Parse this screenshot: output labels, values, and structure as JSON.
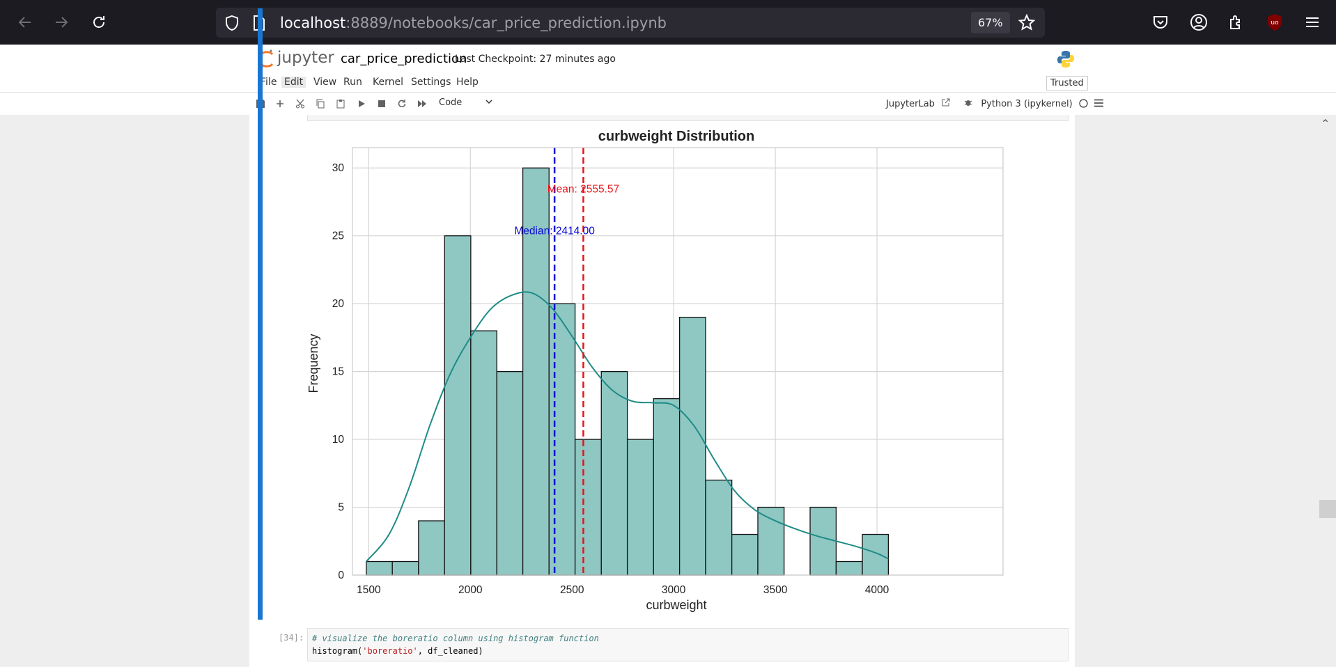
{
  "browser": {
    "url_host": "localhost",
    "url_path": ":8889/notebooks/car_price_prediction.ipynb",
    "zoom": "67%",
    "icons": [
      "back-arrow-icon",
      "forward-arrow-icon",
      "reload-icon",
      "shield-icon",
      "page-icon",
      "star-icon",
      "pocket-icon",
      "account-icon",
      "extensions-icon",
      "ublock-icon",
      "menu-icon"
    ]
  },
  "jupyter": {
    "brand": "jupyter",
    "notebook_name": "car_price_prediction",
    "checkpoint": "Last Checkpoint: 27 minutes ago",
    "menu": [
      "File",
      "Edit",
      "View",
      "Run",
      "Kernel",
      "Settings",
      "Help"
    ],
    "trusted": "Trusted",
    "cell_type": "Code",
    "jupyterlab": "JupyterLab",
    "kernel": "Python 3 (ipykernel)"
  },
  "colors": {
    "bar_fill": "#8fc7c3",
    "kde": "#1e8c86",
    "mean": "#e8141a",
    "median": "#0b0bd6",
    "active_cell": "#1976d2"
  },
  "chart_data": {
    "type": "bar",
    "title": "curbweight Distribution",
    "xlabel": "curbweight",
    "ylabel": "Frequency",
    "xlim": [
      1420,
      4620
    ],
    "ylim": [
      0,
      31.5
    ],
    "xticks": [
      1500,
      2000,
      2500,
      3000,
      3500,
      4000
    ],
    "yticks": [
      0,
      5,
      10,
      15,
      20,
      25,
      30
    ],
    "bin_edges": [
      1488,
      1616,
      1745,
      1873,
      2002,
      2130,
      2258,
      2387,
      2515,
      2644,
      2772,
      2901,
      3029,
      3157,
      3286,
      3414,
      3543,
      3671,
      3799,
      3928,
      4056
    ],
    "values": [
      1,
      1,
      4,
      25,
      18,
      15,
      30,
      20,
      10,
      15,
      10,
      13,
      19,
      7,
      3,
      5,
      0,
      5,
      1,
      3
    ],
    "kde": {
      "x": [
        1488,
        1600,
        1700,
        1800,
        1900,
        2000,
        2100,
        2200,
        2300,
        2400,
        2500,
        2600,
        2700,
        2800,
        2900,
        3000,
        3100,
        3200,
        3300,
        3400,
        3500,
        3600,
        3700,
        3800,
        3900,
        4000,
        4056
      ],
      "y": [
        1.0,
        3.0,
        6.5,
        11.0,
        14.8,
        17.5,
        19.6,
        20.6,
        20.8,
        19.7,
        17.6,
        15.3,
        13.6,
        12.8,
        12.7,
        12.5,
        11.0,
        8.5,
        6.2,
        4.8,
        4.0,
        3.4,
        2.9,
        2.5,
        2.1,
        1.6,
        1.2
      ]
    },
    "mean": 2555.57,
    "median": 2414.0,
    "mean_label": "Mean: 2555.57",
    "median_label": "Median: 2414.00",
    "grid": true,
    "legend": "none"
  },
  "next_cell": {
    "prompt": "[34]:",
    "comment": "# visualize the boreratio column using histogram function",
    "code_prefix": "histogram(",
    "code_string": "'boreratio'",
    "code_suffix": ", df_cleaned)"
  }
}
